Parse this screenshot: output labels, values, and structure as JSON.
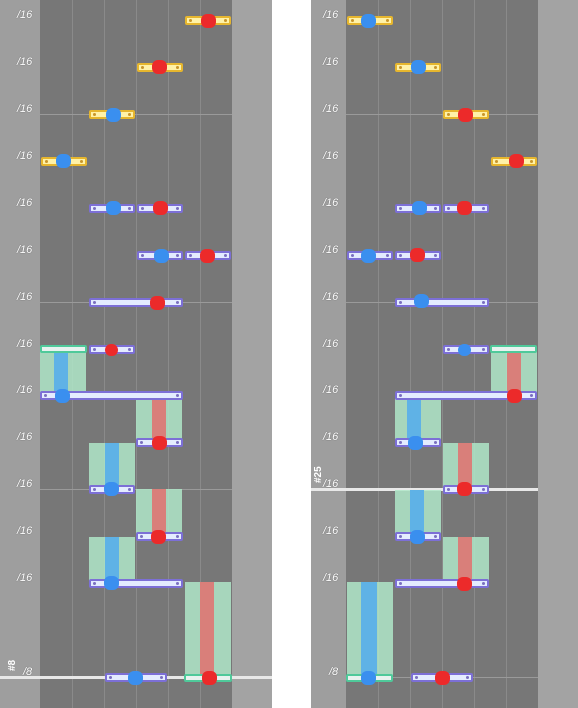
{
  "colors": {
    "blue_note": "#3a8fef",
    "red_note": "#ec2a2a",
    "hold_blue": "#5fb2e6",
    "hold_red": "#d97f7a",
    "hold_body": "#aee6c8",
    "lane_bg": "#777777",
    "margin_bg": "#9e9e9e"
  },
  "panels": [
    {
      "measure_label": "#8",
      "beat_labels": [
        "/16",
        "/16",
        "/16",
        "/16",
        "/16",
        "/16",
        "/16",
        "/16",
        "/16",
        "/16",
        "/16",
        "/16",
        "/16",
        "/8"
      ]
    },
    {
      "measure_label": "#25",
      "beat_labels": [
        "/16",
        "/16",
        "/16",
        "/16",
        "/16",
        "/16",
        "/16",
        "/16",
        "/16",
        "/16",
        "/16",
        "/16",
        "/16",
        "/8"
      ]
    }
  ]
}
